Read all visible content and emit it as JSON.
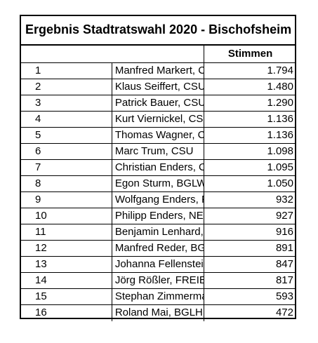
{
  "title": "Ergebnis Stadtratswahl 2020 - Bischofsheim",
  "column_header_votes": "Stimmen",
  "rows": [
    {
      "rank": "1",
      "name": "Manfred Markert, CSU",
      "votes": "1.794"
    },
    {
      "rank": "2",
      "name": "Klaus Seiffert, CSU",
      "votes": "1.480"
    },
    {
      "rank": "3",
      "name": "Patrick Bauer, CSU",
      "votes": "1.290"
    },
    {
      "rank": "4",
      "name": "Kurt Viernickel, CSU",
      "votes": "1.136"
    },
    {
      "rank": "5",
      "name": "Thomas Wagner, CSU",
      "votes": "1.136"
    },
    {
      "rank": "6",
      "name": "Marc Trum, CSU",
      "votes": "1.098"
    },
    {
      "rank": "7",
      "name": "Christian Enders, CSU",
      "votes": "1.095"
    },
    {
      "rank": "8",
      "name": "Egon Sturm, BGLW",
      "votes": "1.050"
    },
    {
      "rank": "9",
      "name": "Wolfgang Enders, FREIE WÄHLER",
      "votes": "932"
    },
    {
      "rank": "10",
      "name": "Philipp Enders, NEO",
      "votes": "927"
    },
    {
      "rank": "11",
      "name": "Benjamin Lenhard, BGLW",
      "votes": "916"
    },
    {
      "rank": "12",
      "name": "Manfred Reder, BGLH",
      "votes": "891"
    },
    {
      "rank": "13",
      "name": "Johanna Fellenstein, NEO",
      "votes": "847"
    },
    {
      "rank": "14",
      "name": "Jörg Rößler, FREIE WÄHLER",
      "votes": "817"
    },
    {
      "rank": "15",
      "name": "Stephan Zimmermann, BGLW",
      "votes": "593"
    },
    {
      "rank": "16",
      "name": "Roland Mai, BGLH",
      "votes": "472"
    }
  ]
}
